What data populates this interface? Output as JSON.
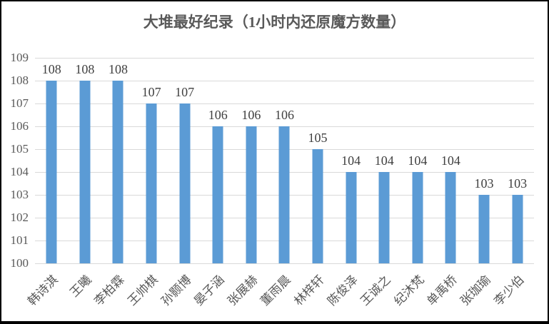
{
  "chart_data": {
    "type": "bar",
    "title": "大堆最好纪录（1小时内还原魔方数量）",
    "categories": [
      "韩诗淇",
      "王曦",
      "李柏霖",
      "王帅棋",
      "孙颢博",
      "晏子涵",
      "张展赫",
      "董雨晨",
      "林梓轩",
      "陈俊泽",
      "王诚之",
      "纪沐梵",
      "单禹桥",
      "张珈瑜",
      "李少伯"
    ],
    "values": [
      108,
      108,
      108,
      107,
      107,
      106,
      106,
      106,
      105,
      104,
      104,
      104,
      104,
      103,
      103
    ],
    "data_labels_shown": true,
    "xlabel": "",
    "ylabel": "",
    "ylim": [
      100,
      109
    ],
    "yticks": [
      100,
      101,
      102,
      103,
      104,
      105,
      106,
      107,
      108,
      109
    ],
    "grid": true,
    "legend_position": "none",
    "colors": {
      "bar": "#5b9bd5",
      "gridline": "#d9d9d9",
      "axis_text": "#595959",
      "data_label_text": "#404040",
      "title_text": "#595959",
      "frame_border": "#000000",
      "background": "#ffffff"
    }
  }
}
